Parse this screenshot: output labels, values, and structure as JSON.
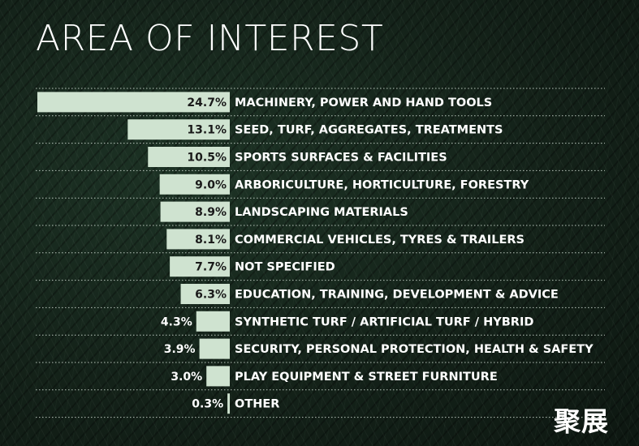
{
  "title": "AREA OF INTEREST",
  "logo_text": "聚展",
  "colors": {
    "background": "#14231a",
    "bar": "#cfe3d0",
    "text": "#ffffff",
    "value_label": "#1a1a1a",
    "divider": "#b8c4bb"
  },
  "chart_data": {
    "type": "bar",
    "orientation": "horizontal",
    "unit": "%",
    "categories": [
      "MACHINERY, POWER AND HAND TOOLS",
      "SEED, TURF, AGGREGATES, TREATMENTS",
      "SPORTS SURFACES & FACILITIES",
      "ARBORICULTURE, HORTICULTURE, FORESTRY",
      "LANDSCAPING MATERIALS",
      "COMMERCIAL VEHICLES, TYRES & TRAILERS",
      "NOT SPECIFIED",
      "EDUCATION, TRAINING, DEVELOPMENT & ADVICE",
      "SYNTHETIC TURF / ARTIFICIAL TURF / HYBRID",
      "SECURITY, PERSONAL PROTECTION, HEALTH & SAFETY",
      "PLAY EQUIPMENT & STREET FURNITURE",
      "OTHER"
    ],
    "values": [
      24.7,
      13.1,
      10.5,
      9.0,
      8.9,
      8.1,
      7.7,
      6.3,
      4.3,
      3.9,
      3.0,
      0.3
    ],
    "value_labels": [
      "24.7%",
      "13.1%",
      "10.5%",
      "9.0%",
      "8.9%",
      "8.1%",
      "7.7%",
      "6.3%",
      "4.3%",
      "3.9%",
      "3.0%",
      "0.3%"
    ],
    "title": "AREA OF INTEREST",
    "grid": false,
    "legend": "none"
  }
}
